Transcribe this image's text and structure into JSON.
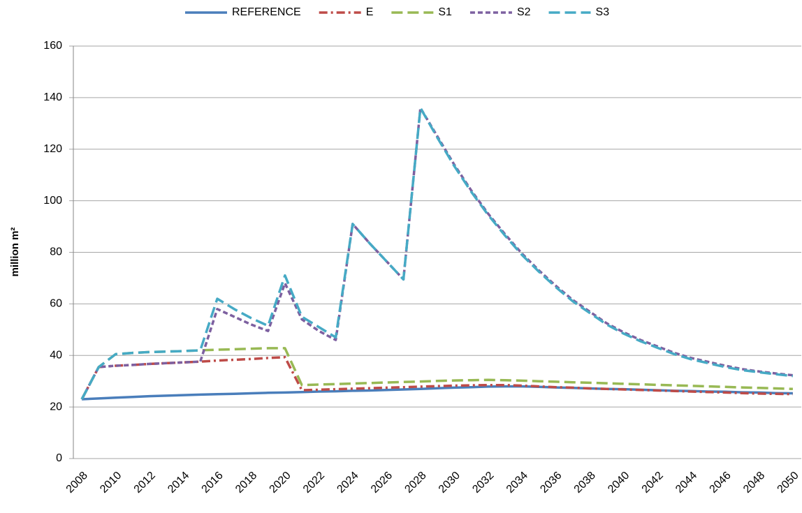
{
  "chart_data": {
    "type": "line",
    "y_label": "million m²",
    "categories": [
      "2008",
      null,
      "2010",
      null,
      "2012",
      null,
      "2014",
      null,
      "2016",
      null,
      "2018",
      null,
      "2020",
      null,
      "2022",
      null,
      "2024",
      null,
      "2026",
      null,
      "2028",
      null,
      "2030",
      null,
      "2032",
      null,
      "2034",
      null,
      "2036",
      null,
      "2038",
      null,
      "2040",
      null,
      "2042",
      null,
      "2044",
      null,
      "2046",
      null,
      "2048",
      null,
      "2050"
    ],
    "series": [
      {
        "name": "REFERENCE",
        "color": "#4a7ebb",
        "line_style": "solid",
        "values": [
          23.0,
          23.3,
          23.6,
          23.9,
          24.2,
          24.4,
          24.6,
          24.8,
          25.0,
          25.1,
          25.3,
          25.5,
          25.6,
          25.8,
          26.0,
          26.1,
          26.3,
          26.4,
          26.6,
          26.8,
          27.0,
          27.3,
          27.5,
          27.7,
          27.9,
          28.0,
          28.0,
          27.8,
          27.6,
          27.4,
          27.2,
          27.0,
          26.9,
          26.7,
          26.5,
          26.3,
          26.2,
          26.0,
          25.9,
          25.7,
          25.6,
          25.4,
          25.3
        ]
      },
      {
        "name": "E",
        "color": "#be4b48",
        "line_style": "dash-dot",
        "values": [
          23.0,
          35.5,
          36.0,
          36.3,
          36.7,
          37.0,
          37.3,
          37.6,
          38.0,
          38.3,
          38.6,
          39.0,
          39.3,
          26.5,
          26.7,
          26.9,
          27.1,
          27.3,
          27.5,
          27.7,
          27.9,
          28.1,
          28.3,
          28.4,
          28.5,
          28.5,
          28.3,
          28.0,
          27.7,
          27.5,
          27.2,
          27.0,
          26.8,
          26.6,
          26.4,
          26.2,
          26.0,
          25.8,
          25.6,
          25.4,
          25.2,
          25.1,
          25.0
        ]
      },
      {
        "name": "S1",
        "color": "#98b954",
        "line_style": "long-dash",
        "values": [
          23.0,
          35.5,
          40.5,
          41.0,
          41.3,
          41.5,
          41.7,
          42.0,
          42.2,
          42.4,
          42.6,
          42.8,
          42.8,
          28.5,
          28.7,
          28.9,
          29.1,
          29.3,
          29.5,
          29.7,
          29.9,
          30.1,
          30.3,
          30.4,
          30.5,
          30.4,
          30.2,
          30.0,
          29.8,
          29.6,
          29.4,
          29.2,
          29.0,
          28.8,
          28.6,
          28.4,
          28.2,
          28.0,
          27.8,
          27.6,
          27.4,
          27.2,
          27.0
        ]
      },
      {
        "name": "S2",
        "color": "#7d60a0",
        "line_style": "dash",
        "values": [
          23.0,
          35.5,
          36.0,
          36.3,
          36.7,
          37.0,
          37.3,
          37.6,
          58.0,
          55.0,
          52.0,
          49.5,
          68.0,
          54.0,
          49.5,
          46.0,
          91.0,
          83.5,
          76.5,
          69.5,
          136.0,
          125.0,
          114.0,
          104.0,
          95.0,
          87.0,
          79.5,
          73.0,
          67.0,
          61.5,
          57.0,
          52.5,
          49.0,
          46.0,
          43.5,
          41.0,
          39.0,
          37.5,
          36.0,
          34.7,
          33.8,
          33.0,
          32.3
        ]
      },
      {
        "name": "S3",
        "color": "#46aac5",
        "line_style": "long-dash",
        "values": [
          23.0,
          35.5,
          40.5,
          41.0,
          41.3,
          41.5,
          41.7,
          42.0,
          62.0,
          58.0,
          54.5,
          51.5,
          71.0,
          55.0,
          51.0,
          47.0,
          91.0,
          83.5,
          76.5,
          69.5,
          136.0,
          124.5,
          113.5,
          103.5,
          94.5,
          86.5,
          79.0,
          72.5,
          66.5,
          61.0,
          56.5,
          52.0,
          48.5,
          45.5,
          43.0,
          40.5,
          38.5,
          37.0,
          35.5,
          34.3,
          33.5,
          32.7,
          32.0
        ]
      }
    ],
    "ylim": [
      0,
      160
    ],
    "yticks": [
      0,
      20,
      40,
      60,
      80,
      100,
      120,
      140,
      160
    ],
    "grid": true,
    "legend": "top"
  }
}
